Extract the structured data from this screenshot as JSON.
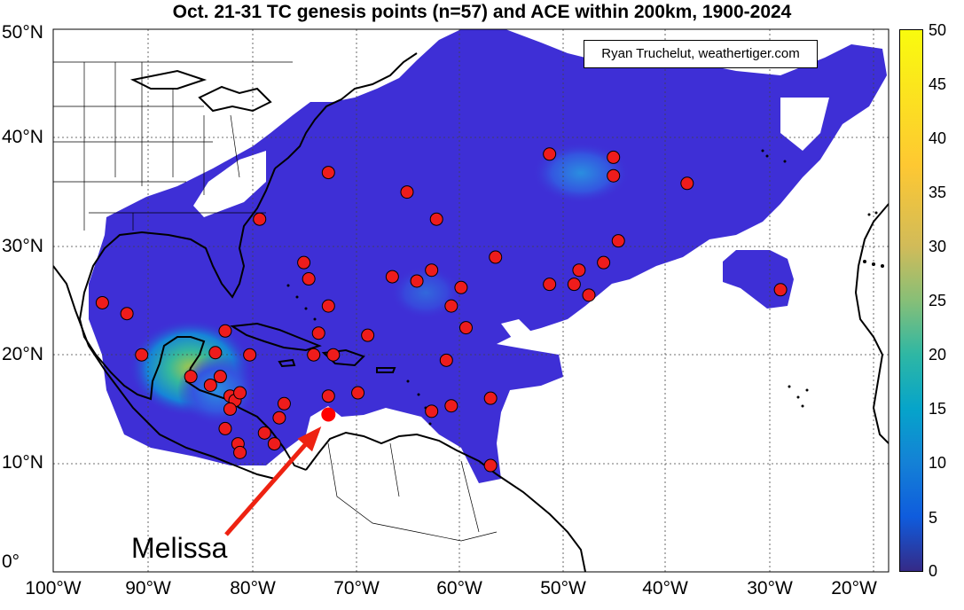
{
  "title": "Oct. 21-31 TC genesis points (n=57) and ACE within 200km, 1900-2024",
  "credit": "Ryan Truchelut, weathertiger.com",
  "annotation": {
    "label": "Melissa",
    "lon": -72.0,
    "lat": 14.5,
    "color": "#ff0000"
  },
  "map_extent": {
    "lon_min": -100,
    "lon_max": -15,
    "lat_min": 0,
    "lat_max": 50
  },
  "x_ticks": [
    "100°W",
    "90°W",
    "80°W",
    "70°W",
    "60°W",
    "50°W",
    "40°W",
    "30°W",
    "20°W"
  ],
  "y_ticks": [
    "0°",
    "10°N",
    "20°N",
    "30°N",
    "40°N",
    "50°N"
  ],
  "colorbar": {
    "ticks": [
      "0",
      "5",
      "10",
      "15",
      "20",
      "25",
      "30",
      "35",
      "40",
      "45",
      "50"
    ],
    "min": 0,
    "max": 50,
    "colormap": "parula"
  },
  "colors": {
    "ace_base": "#3e2fd6",
    "point_fill": "#ee1c1c",
    "arrow": "#ee2211"
  },
  "genesis_points": [
    {
      "lon": -95.0,
      "lat": 24.8
    },
    {
      "lon": -92.5,
      "lat": 23.8
    },
    {
      "lon": -91.0,
      "lat": 20.0
    },
    {
      "lon": -86.0,
      "lat": 18.0
    },
    {
      "lon": -84.0,
      "lat": 17.2
    },
    {
      "lon": -83.5,
      "lat": 20.2
    },
    {
      "lon": -83.0,
      "lat": 18.0
    },
    {
      "lon": -82.5,
      "lat": 22.2
    },
    {
      "lon": -82.0,
      "lat": 16.2
    },
    {
      "lon": -81.5,
      "lat": 15.8
    },
    {
      "lon": -81.0,
      "lat": 16.5
    },
    {
      "lon": -82.0,
      "lat": 15.0
    },
    {
      "lon": -82.5,
      "lat": 13.2
    },
    {
      "lon": -81.2,
      "lat": 11.8
    },
    {
      "lon": -81.0,
      "lat": 11.0
    },
    {
      "lon": -78.5,
      "lat": 12.8
    },
    {
      "lon": -77.5,
      "lat": 11.8
    },
    {
      "lon": -77.0,
      "lat": 14.2
    },
    {
      "lon": -76.5,
      "lat": 15.5
    },
    {
      "lon": -80.0,
      "lat": 20.0
    },
    {
      "lon": -79.0,
      "lat": 32.5
    },
    {
      "lon": -74.5,
      "lat": 28.5
    },
    {
      "lon": -74.0,
      "lat": 27.0
    },
    {
      "lon": -72.0,
      "lat": 36.8
    },
    {
      "lon": -72.0,
      "lat": 24.5
    },
    {
      "lon": -73.0,
      "lat": 22.0
    },
    {
      "lon": -73.5,
      "lat": 20.0
    },
    {
      "lon": -71.5,
      "lat": 20.0
    },
    {
      "lon": -72.0,
      "lat": 16.2
    },
    {
      "lon": -69.0,
      "lat": 16.5
    },
    {
      "lon": -68.0,
      "lat": 21.8
    },
    {
      "lon": -65.5,
      "lat": 27.2
    },
    {
      "lon": -64.0,
      "lat": 35.0
    },
    {
      "lon": -63.0,
      "lat": 26.8
    },
    {
      "lon": -61.5,
      "lat": 27.8
    },
    {
      "lon": -61.0,
      "lat": 32.5
    },
    {
      "lon": -59.5,
      "lat": 24.5
    },
    {
      "lon": -58.5,
      "lat": 26.2
    },
    {
      "lon": -58.0,
      "lat": 22.5
    },
    {
      "lon": -60.0,
      "lat": 19.5
    },
    {
      "lon": -59.5,
      "lat": 15.3
    },
    {
      "lon": -61.5,
      "lat": 14.8
    },
    {
      "lon": -55.5,
      "lat": 16.0
    },
    {
      "lon": -55.5,
      "lat": 9.8
    },
    {
      "lon": -55.0,
      "lat": 29.0
    },
    {
      "lon": -49.5,
      "lat": 38.5
    },
    {
      "lon": -49.5,
      "lat": 26.5
    },
    {
      "lon": -47.0,
      "lat": 26.5
    },
    {
      "lon": -46.5,
      "lat": 27.8
    },
    {
      "lon": -45.5,
      "lat": 25.5
    },
    {
      "lon": -44.0,
      "lat": 28.5
    },
    {
      "lon": -43.0,
      "lat": 38.2
    },
    {
      "lon": -43.0,
      "lat": 36.5
    },
    {
      "lon": -42.5,
      "lat": 30.5
    },
    {
      "lon": -35.5,
      "lat": 35.8
    },
    {
      "lon": -26.0,
      "lat": 26.0
    },
    {
      "lon": -72.0,
      "lat": 14.5
    }
  ]
}
